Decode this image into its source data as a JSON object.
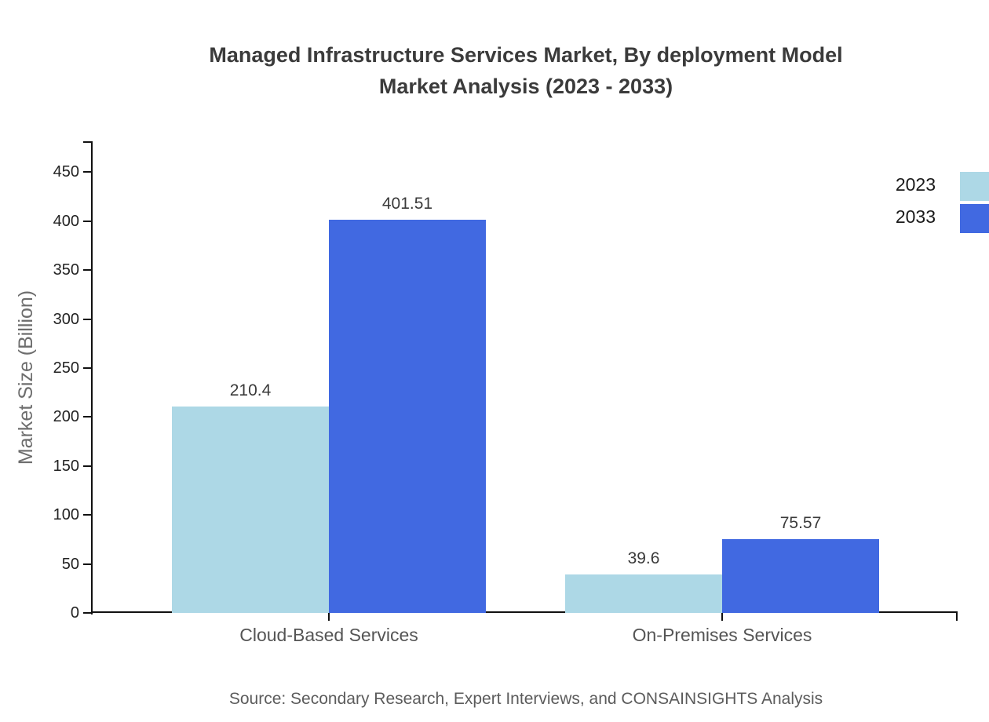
{
  "header": {
    "title_line1": "Managed Infrastructure Services Market, By deployment Model",
    "title_line2": "Market Analysis (2023 - 2033)"
  },
  "footer": {
    "source": "Source: Secondary Research, Expert Interviews, and CONSAINSIGHTS Analysis"
  },
  "chart_data": {
    "type": "bar",
    "title": "Managed Infrastructure Services Market, By deployment Model Market Analysis (2023 - 2033)",
    "categories": [
      "Cloud-Based Services",
      "On-Premises Services"
    ],
    "series": [
      {
        "name": "2023",
        "color": "#ADD8E6",
        "values": [
          210.4,
          39.6
        ]
      },
      {
        "name": "2033",
        "color": "#4169E1",
        "values": [
          401.51,
          75.57
        ]
      }
    ],
    "value_labels": [
      [
        "210.4",
        "39.6"
      ],
      [
        "401.51",
        "75.57"
      ]
    ],
    "xlabel": "",
    "ylabel": "Market Size (Billion)",
    "ylim": [
      0,
      481
    ],
    "yticks": [
      0,
      50,
      100,
      150,
      200,
      250,
      300,
      350,
      400,
      450
    ],
    "grid": false,
    "legend_position": "top-right",
    "legend_entries": [
      "2023",
      "2033"
    ]
  }
}
